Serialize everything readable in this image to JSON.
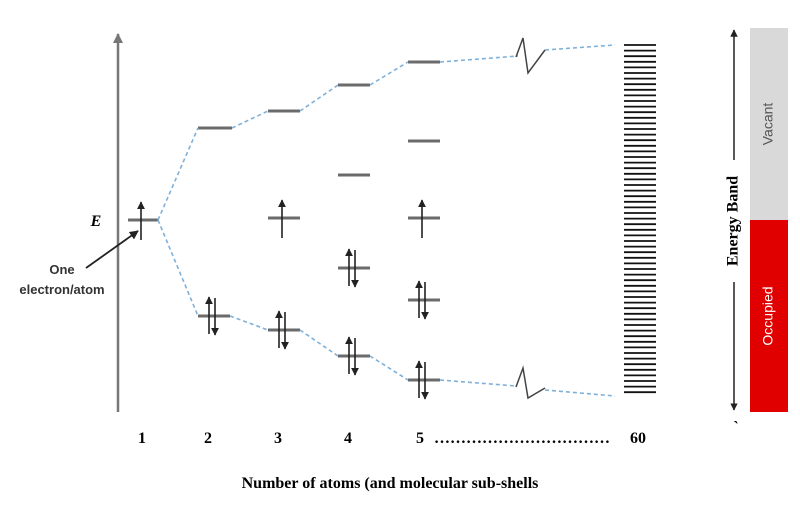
{
  "energy_label": "E",
  "annotation": [
    "One",
    "electron/atom"
  ],
  "x_labels": [
    "1",
    "2",
    "3",
    "4",
    "5",
    "……………………………",
    "60"
  ],
  "x_title": "Number of atoms (and molecular sub-shells",
  "band": {
    "label": "Energy Band",
    "vacant": "Vacant",
    "occupied": "Occupied",
    "mark": "`"
  }
}
